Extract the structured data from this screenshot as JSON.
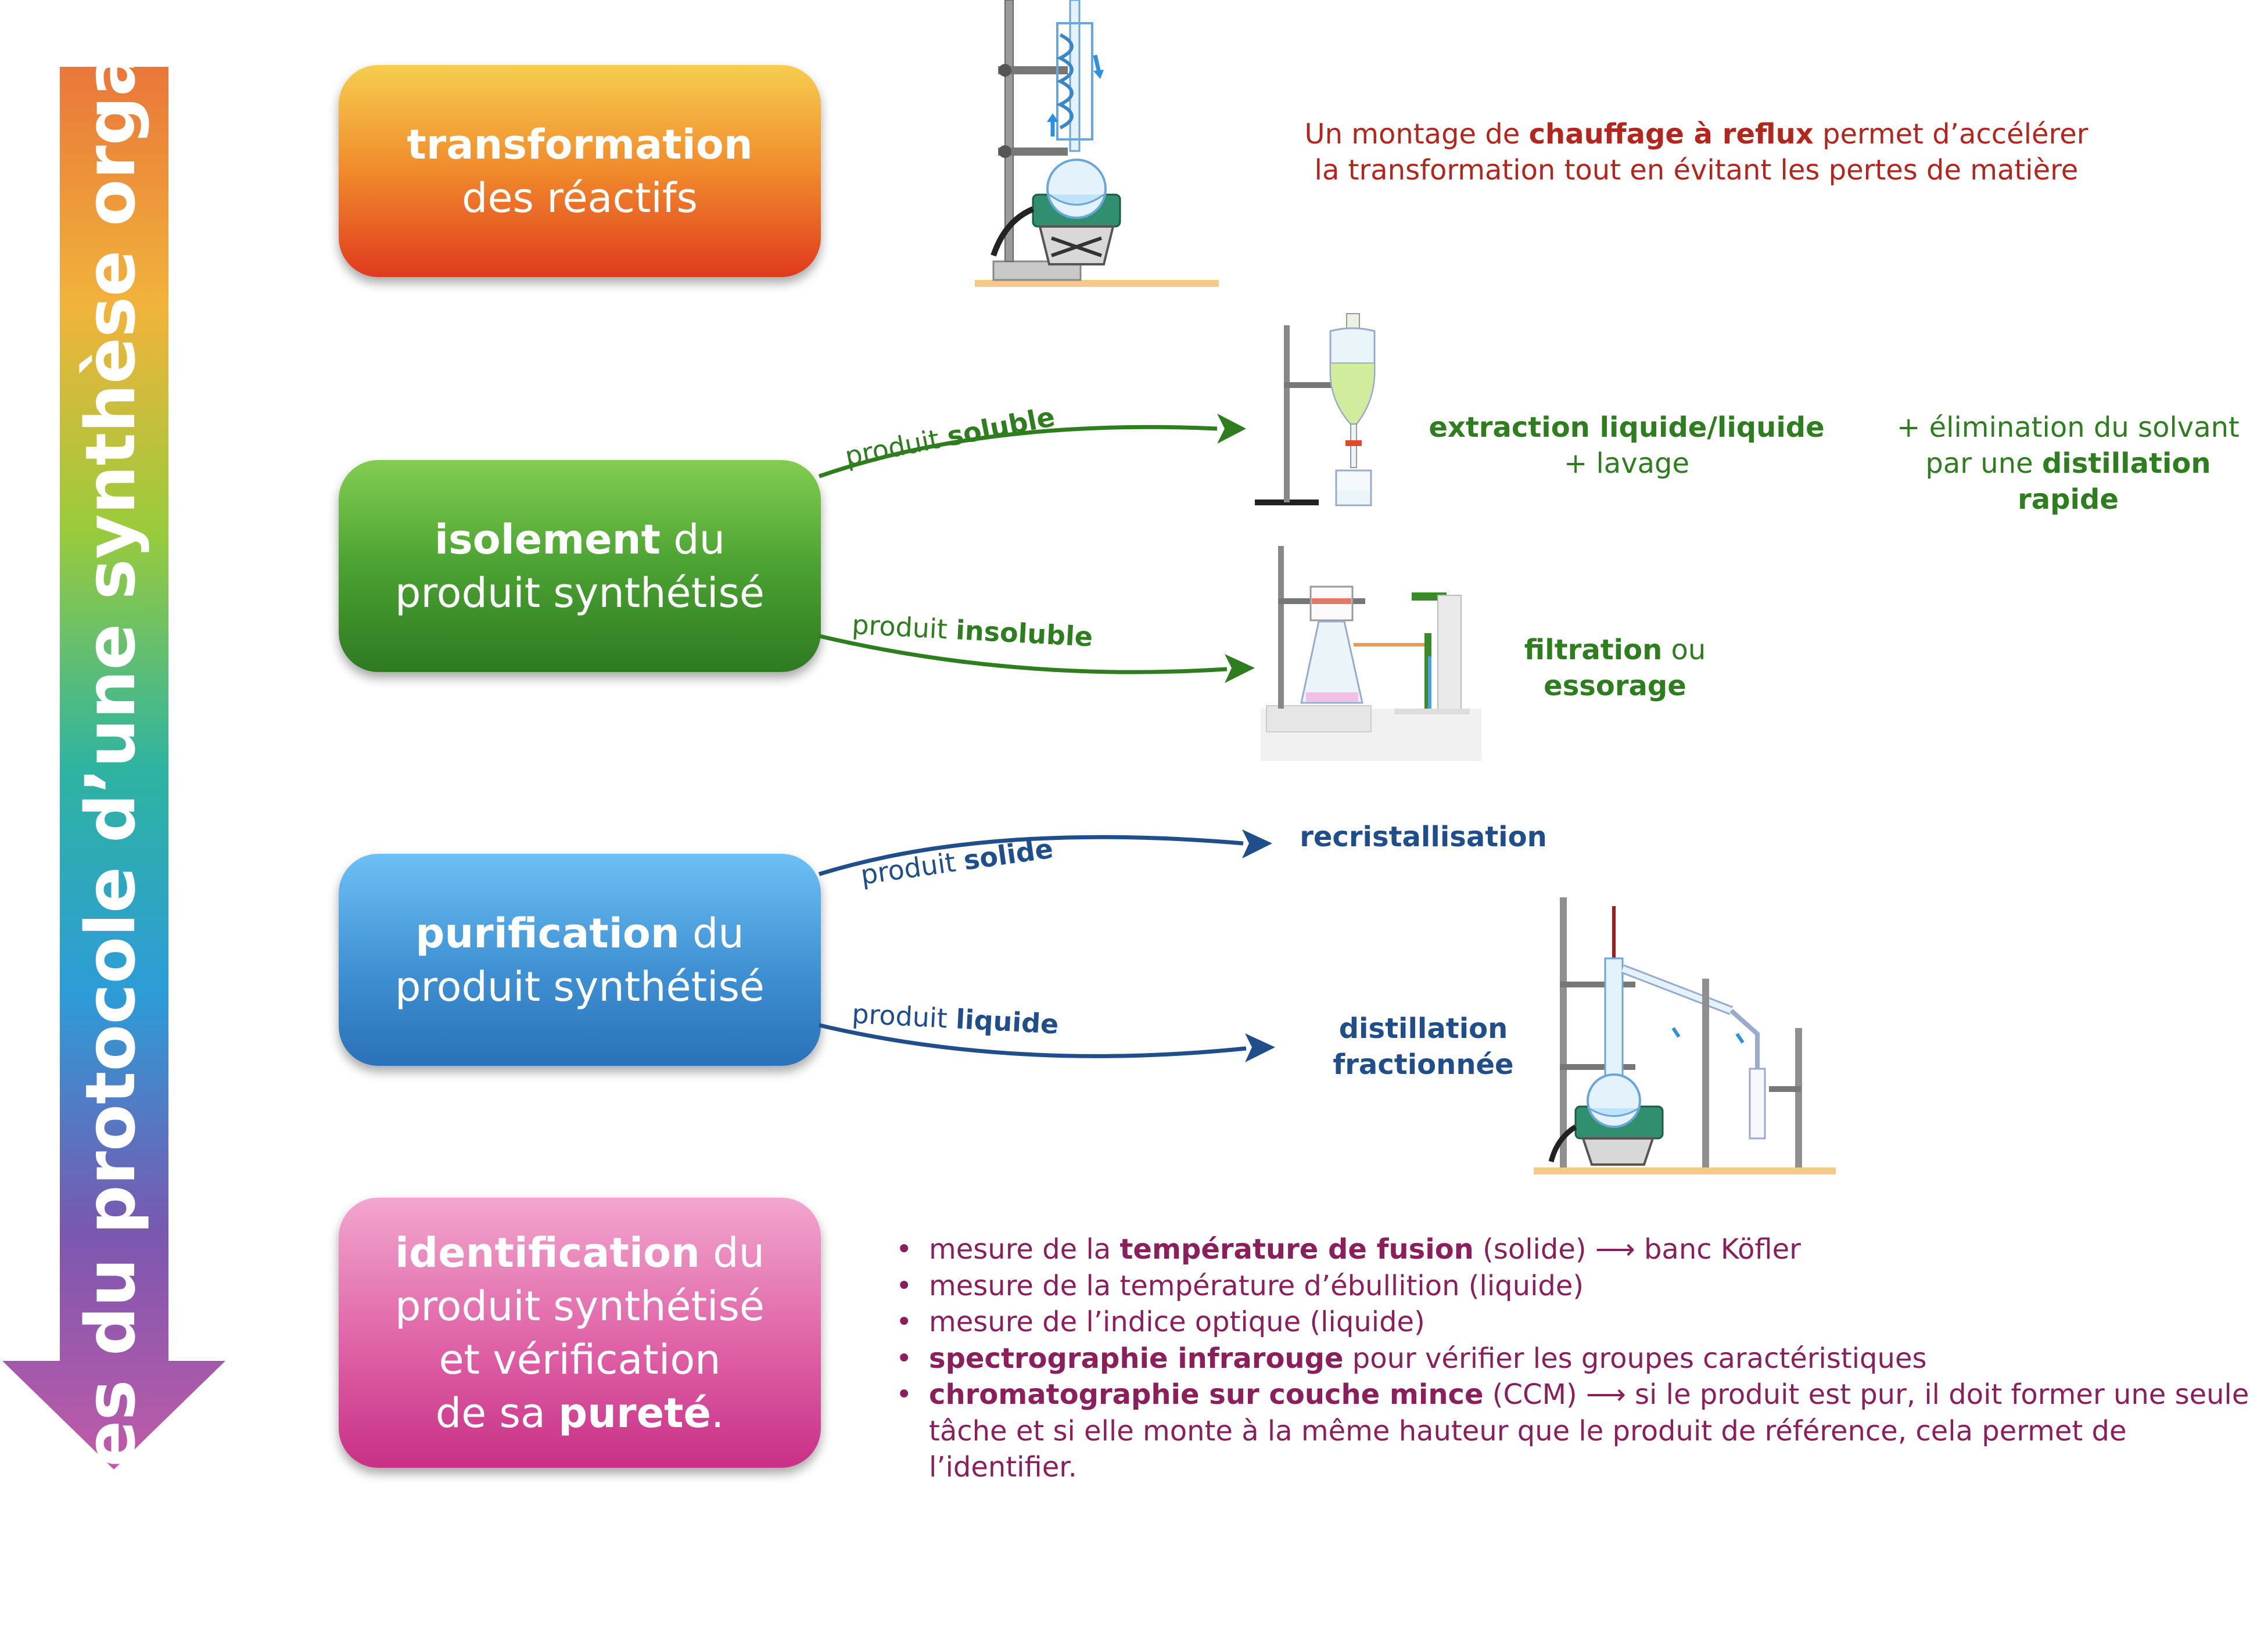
{
  "side_arrow": {
    "title": "Étapes du protocole d’une synthèse organique",
    "colors": [
      "#e9773a",
      "#f1b33b",
      "#9acb3c",
      "#2fb3a1",
      "#2d9cd8",
      "#7a58b0",
      "#c25aa8"
    ]
  },
  "stages": {
    "transformation": {
      "bold": "transformation",
      "line2": "des réactifs"
    },
    "isolement": {
      "bold": "isolement",
      "rest": " du",
      "line2": "produit synthétisé"
    },
    "purification": {
      "bold": "purification",
      "rest": " du",
      "line2": "produit synthétisé"
    },
    "identification": {
      "bold": "identification",
      "rest": " du",
      "line2": "produit synthétisé",
      "line3": "et vérification",
      "line4_pre": "de sa ",
      "line4_bold": "pureté",
      "line4_post": "."
    }
  },
  "reflux_note": {
    "pre": "Un montage de ",
    "bold": "chauffage à reflux",
    "post": " permet d’accélérer",
    "line2": "la transformation tout en évitant les pertes de matière"
  },
  "branches": {
    "soluble": {
      "word": "produit ",
      "bold": "soluble"
    },
    "insoluble": {
      "word": "produit ",
      "bold": "insoluble"
    },
    "solide": {
      "word": "produit ",
      "bold": "solide"
    },
    "liquide": {
      "word": "produit ",
      "bold": "liquide"
    }
  },
  "methods": {
    "extraction": {
      "line1": "extraction liquide/liquide",
      "line2": "+ lavage"
    },
    "elimination": {
      "line1": "+ élimination du solvant",
      "line2_pre": "par une ",
      "line2_bold": "distillation rapide"
    },
    "filtration": {
      "bold1": "filtration",
      "rest1": " ou",
      "bold2": "essorage"
    },
    "recristallisation": "recristallisation",
    "distillation": {
      "line1": "distillation",
      "line2": "fractionnée"
    }
  },
  "identification_list": [
    {
      "pre": "mesure de la ",
      "bold": "température de fusion",
      "post": " (solide) ⟶ banc Köfler"
    },
    {
      "pre": "mesure de la température d’ébullition (liquide)",
      "bold": "",
      "post": ""
    },
    {
      "pre": "mesure de l’indice optique (liquide)",
      "bold": "",
      "post": ""
    },
    {
      "pre": "",
      "bold": "spectrographie infrarouge",
      "post": " pour vérifier les groupes caractéristiques"
    },
    {
      "pre": "",
      "bold": "chromatographie sur couche mince",
      "post": " (CCM) ⟶ si le produit est pur, il doit former une seule",
      "line2": "tâche et si elle monte à la même hauteur que le produit de référence, cela permet de l’identifier."
    }
  ],
  "colors": {
    "green": "#2e7d1f",
    "blue": "#1f4e8a",
    "red": "#b3261e",
    "purple": "#8b1f5c"
  }
}
